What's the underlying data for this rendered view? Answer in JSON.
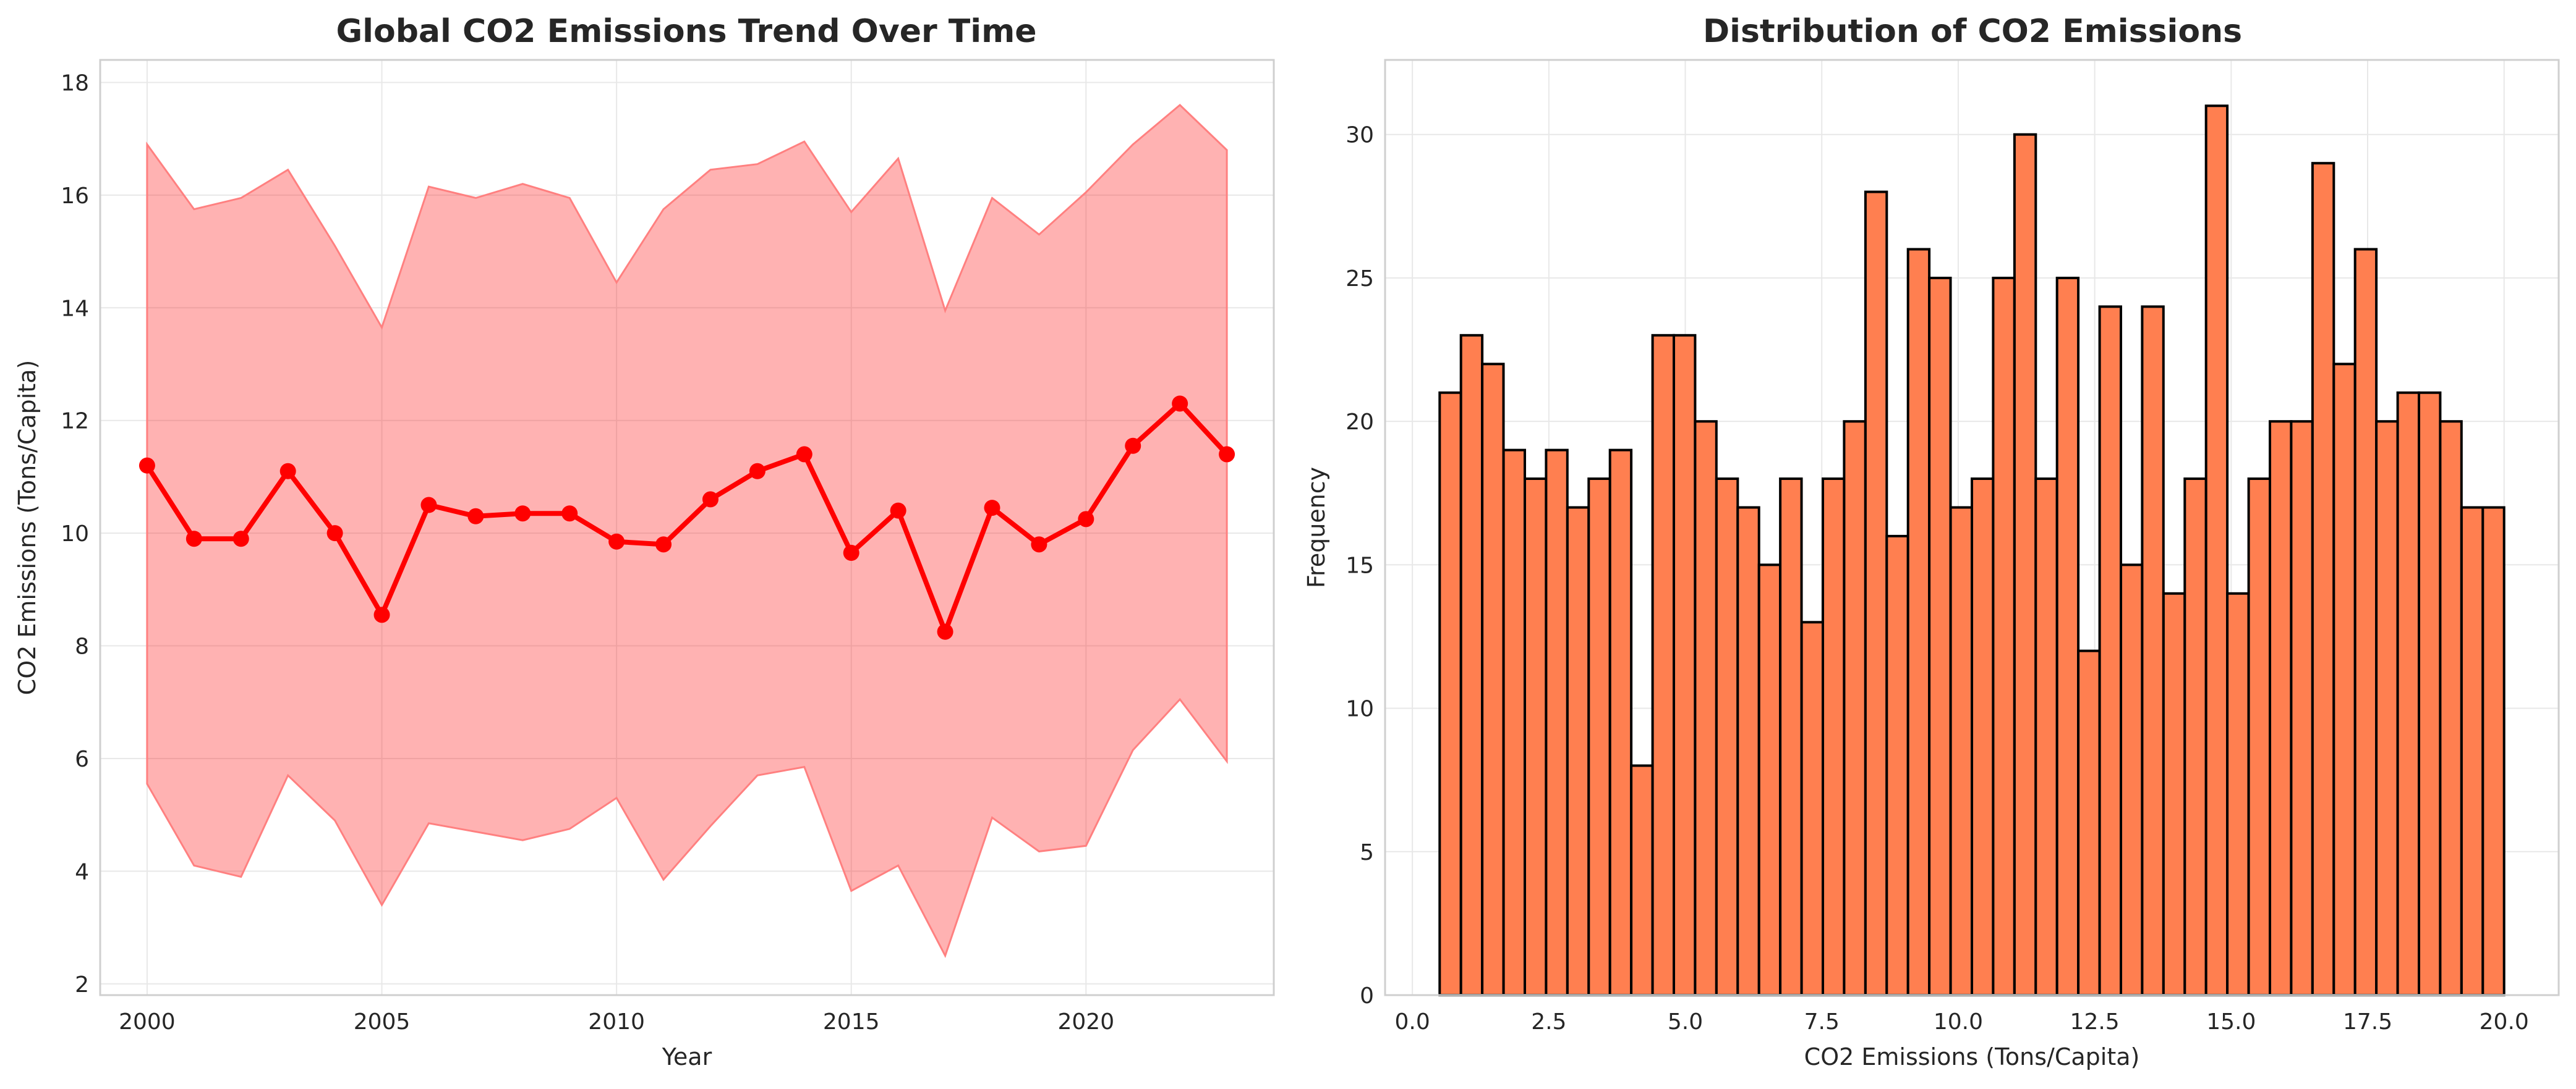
{
  "chart_data": [
    {
      "type": "line",
      "title": "Global CO2 Emissions Trend Over Time",
      "xlabel": "Year",
      "ylabel": "CO2 Emissions (Tons/Capita)",
      "xlim": [
        1999,
        2024
      ],
      "ylim": [
        1.8,
        18.4
      ],
      "xticks": [
        2000,
        2005,
        2010,
        2015,
        2020
      ],
      "yticks": [
        2,
        4,
        6,
        8,
        10,
        12,
        14,
        16,
        18
      ],
      "grid": true,
      "legend": "none",
      "colors": {
        "line": "#ff0000",
        "band": "#ff8080"
      },
      "x": [
        2000,
        2001,
        2002,
        2003,
        2004,
        2005,
        2006,
        2007,
        2008,
        2009,
        2010,
        2011,
        2012,
        2013,
        2014,
        2015,
        2016,
        2017,
        2018,
        2019,
        2020,
        2021,
        2022,
        2023
      ],
      "series": [
        {
          "values": [
            11.2,
            9.9,
            9.9,
            11.1,
            10.0,
            8.55,
            10.5,
            10.3,
            10.35,
            10.35,
            9.85,
            9.8,
            10.6,
            11.1,
            11.4,
            9.65,
            10.4,
            8.25,
            10.45,
            9.8,
            10.25,
            11.55,
            12.3,
            11.4
          ]
        }
      ],
      "band": {
        "upper": [
          16.9,
          15.75,
          15.95,
          16.45,
          15.1,
          13.65,
          16.15,
          15.95,
          16.2,
          15.95,
          14.45,
          15.75,
          16.45,
          16.55,
          16.95,
          15.7,
          16.65,
          13.95,
          15.95,
          15.3,
          16.05,
          16.9,
          17.6,
          16.8
        ],
        "lower": [
          5.55,
          4.1,
          3.9,
          5.7,
          4.9,
          3.4,
          4.85,
          4.7,
          4.55,
          4.75,
          5.3,
          3.85,
          4.8,
          5.7,
          5.85,
          3.65,
          4.1,
          2.5,
          4.95,
          4.35,
          4.45,
          6.15,
          7.05,
          5.95
        ]
      }
    },
    {
      "type": "bar",
      "title": "Distribution of CO2 Emissions",
      "xlabel": "CO2 Emissions (Tons/Capita)",
      "ylabel": "Frequency",
      "xlim": [
        -0.5,
        21.0
      ],
      "ylim": [
        0,
        32.6
      ],
      "xticks": [
        0.0,
        2.5,
        5.0,
        7.5,
        10.0,
        12.5,
        15.0,
        17.5,
        20.0
      ],
      "xtick_labels": [
        "0.0",
        "2.5",
        "5.0",
        "7.5",
        "10.0",
        "12.5",
        "15.0",
        "17.5",
        "20.0"
      ],
      "yticks": [
        0,
        5,
        10,
        15,
        20,
        25,
        30
      ],
      "grid": true,
      "legend": "none",
      "colors": {
        "bar": "#ff7f50",
        "edge": "#000000"
      },
      "bin_start": 0.5,
      "bin_width": 0.39,
      "values": [
        21,
        23,
        22,
        19,
        18,
        19,
        17,
        18,
        19,
        8,
        23,
        23,
        20,
        18,
        17,
        15,
        18,
        13,
        18,
        20,
        28,
        16,
        26,
        25,
        17,
        18,
        25,
        30,
        18,
        25,
        12,
        24,
        15,
        24,
        14,
        18,
        31,
        14,
        18,
        20,
        20,
        29,
        22,
        26,
        20,
        21,
        21,
        20,
        17,
        17
      ]
    }
  ]
}
